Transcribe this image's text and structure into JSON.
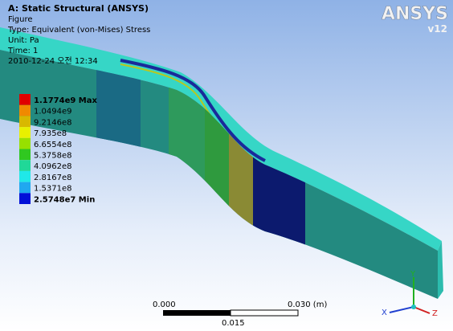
{
  "header": {
    "title": "A: Static Structural (ANSYS)",
    "lines": [
      "Figure",
      "Type: Equivalent (von-Mises) Stress",
      "Unit: Pa",
      "Time: 1",
      "2010-12-24 오전 12:34"
    ]
  },
  "legend": {
    "labels": [
      "1.1774e9 Max",
      "1.0494e9",
      "9.2146e8",
      "7.935e8",
      "6.6554e8",
      "5.3758e8",
      "4.0962e8",
      "2.8167e8",
      "1.5371e8",
      "2.5748e7 Min"
    ]
  },
  "scale_bar": {
    "start": "0.000",
    "end": "0.030 (m)",
    "middle": "0.015"
  },
  "logo": {
    "name": "ANSYS",
    "version": "v12"
  },
  "triad": {
    "y": "Y",
    "x": "X",
    "z": "Z"
  }
}
